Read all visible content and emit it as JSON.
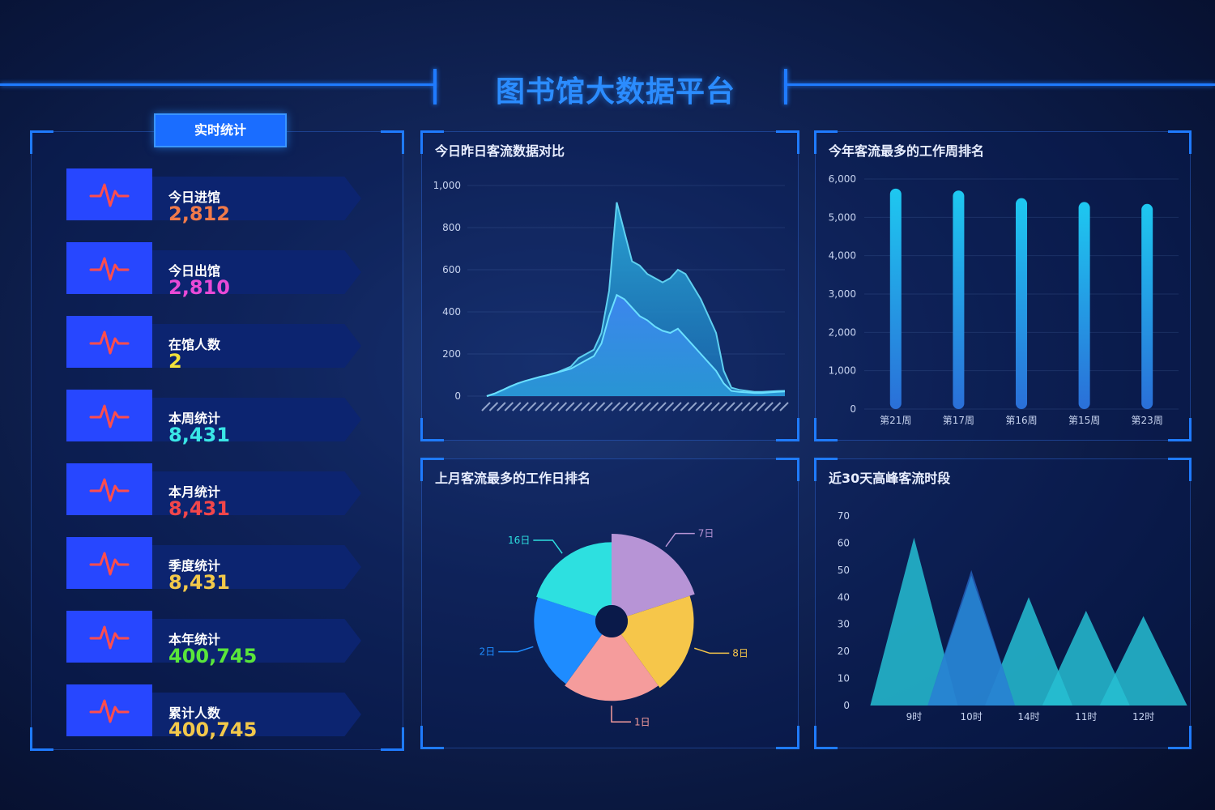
{
  "header": {
    "title": "图书馆大数据平台"
  },
  "stats_panel": {
    "title": "实时统计",
    "items": [
      {
        "label": "今日进馆",
        "value": "2,812",
        "color": "#f07a4a"
      },
      {
        "label": "今日出馆",
        "value": "2,810",
        "color": "#e94ad6"
      },
      {
        "label": "在馆人数",
        "value": "2",
        "color": "#f2e23a"
      },
      {
        "label": "本周统计",
        "value": "8,431",
        "color": "#3ae6e6"
      },
      {
        "label": "本月统计",
        "value": "8,431",
        "color": "#f2464a"
      },
      {
        "label": "季度统计",
        "value": "8,431",
        "color": "#f2c84a"
      },
      {
        "label": "本年统计",
        "value": "400,745",
        "color": "#5ae63a"
      },
      {
        "label": "累计人数",
        "value": "400,745",
        "color": "#f2c84a"
      }
    ],
    "icon": "pulse-icon"
  },
  "charts": {
    "area": {
      "title": "今日昨日客流数据对比",
      "chart_data": {
        "type": "area",
        "ylim": [
          0,
          1000
        ],
        "yticks": [
          "0",
          "200",
          "400",
          "600",
          "800",
          "1,000"
        ],
        "series": [
          {
            "values": [
              0,
              10,
              25,
              40,
              55,
              70,
              80,
              90,
              100,
              110,
              125,
              140,
              180,
              200,
              220,
              300,
              500,
              920,
              780,
              640,
              620,
              580,
              560,
              540,
              560,
              600,
              580,
              520,
              460,
              380,
              300,
              120,
              40,
              30,
              25,
              20,
              20,
              22,
              24,
              25
            ]
          },
          {
            "values": [
              0,
              12,
              28,
              45,
              60,
              72,
              82,
              92,
              100,
              110,
              120,
              130,
              150,
              170,
              190,
              250,
              380,
              480,
              460,
              420,
              380,
              360,
              330,
              310,
              300,
              320,
              280,
              240,
              200,
              160,
              120,
              60,
              25,
              20,
              18,
              15,
              15,
              18,
              20,
              22
            ]
          }
        ]
      }
    },
    "weekly": {
      "title": "今年客流最多的工作周排名",
      "chart_data": {
        "type": "bar",
        "categories": [
          "第21周",
          "第17周",
          "第16周",
          "第15周",
          "第23周"
        ],
        "values": [
          5750,
          5700,
          5500,
          5400,
          5350
        ],
        "ylim": [
          0,
          6000
        ],
        "yticks": [
          "0",
          "1,000",
          "2,000",
          "3,000",
          "4,000",
          "5,000",
          "6,000"
        ]
      }
    },
    "rose": {
      "title": "上月客流最多的工作日排名",
      "chart_data": {
        "type": "pie",
        "slices": [
          {
            "label": "7日",
            "value": 100,
            "color": "#b794d6"
          },
          {
            "label": "8日",
            "value": 80,
            "color": "#f6c64a"
          },
          {
            "label": "1日",
            "value": 70,
            "color": "#f59c9c"
          },
          {
            "label": "2日",
            "value": 62,
            "color": "#1e8cff"
          },
          {
            "label": "16日",
            "value": 68,
            "color": "#2de0e0"
          }
        ]
      }
    },
    "peak": {
      "title": "近30天高峰客流时段",
      "chart_data": {
        "type": "bar",
        "categories": [
          "9时",
          "10时",
          "14时",
          "11时",
          "12时"
        ],
        "series": [
          {
            "values": [
              62,
              48,
              40,
              35,
              33
            ]
          },
          {
            "values": [
              0,
              50,
              0,
              0,
              0
            ]
          }
        ],
        "ylim": [
          0,
          70
        ],
        "yticks": [
          "0",
          "10",
          "20",
          "30",
          "40",
          "50",
          "60",
          "70"
        ]
      }
    }
  }
}
